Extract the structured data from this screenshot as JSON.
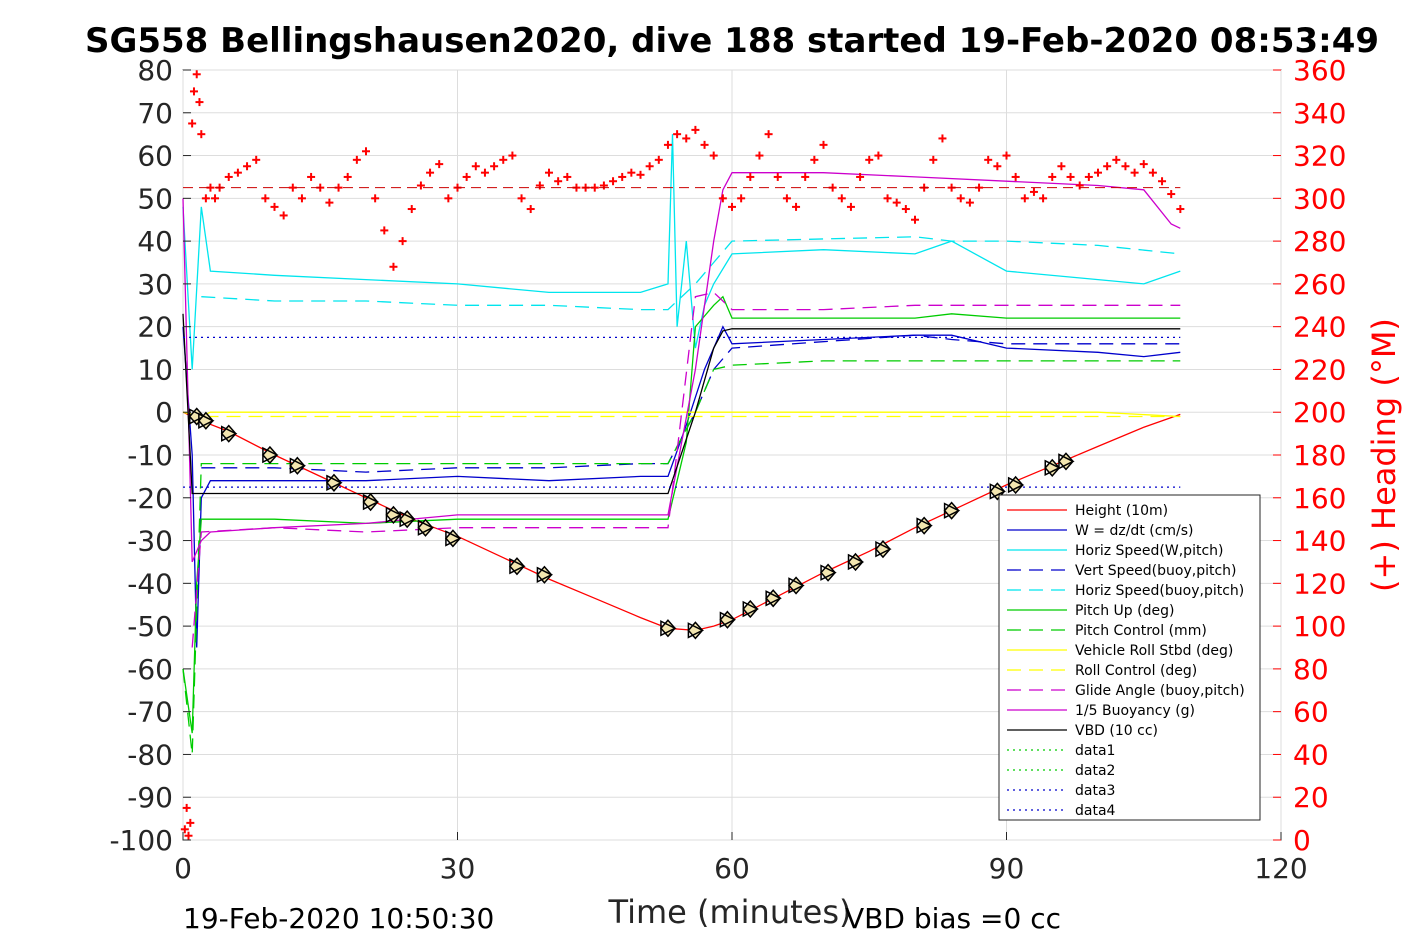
{
  "chart_data": {
    "type": "line",
    "title": "SG558 Bellingshausen2020, dive 188 started 19-Feb-2020 08:53:49",
    "xlabel": "Time (minutes)",
    "ylabel": "",
    "y2label": "(+) Heading (°M)",
    "xlim": [
      0,
      120
    ],
    "ylim": [
      -100,
      80
    ],
    "y2lim": [
      0,
      360
    ],
    "xticks": [
      0,
      30,
      60,
      90,
      120
    ],
    "yticks": [
      80,
      70,
      60,
      50,
      40,
      30,
      20,
      10,
      0,
      -10,
      -20,
      -30,
      -40,
      -50,
      -60,
      -70,
      -80,
      -90,
      -100
    ],
    "y2ticks": [
      360,
      340,
      320,
      300,
      280,
      260,
      240,
      220,
      200,
      180,
      160,
      140,
      120,
      100,
      80,
      60,
      40,
      20,
      0
    ],
    "grid": true,
    "legend_position": "bottom-right",
    "footer_left": "19-Feb-2020 10:50:30",
    "footer_right": "VBD bias =0 cc",
    "series": [
      {
        "name": "Height (10m)",
        "color": "#ff0000",
        "style": "solid",
        "x": [
          0,
          2,
          5,
          10,
          15,
          20,
          25,
          30,
          35,
          40,
          45,
          50,
          53,
          56,
          58,
          60,
          65,
          70,
          75,
          80,
          85,
          90,
          95,
          100,
          105,
          109
        ],
        "y": [
          0,
          -2,
          -4.5,
          -10,
          -15,
          -20,
          -25,
          -29,
          -34,
          -39,
          -43.5,
          -48,
          -50.5,
          -51,
          -50,
          -48.5,
          -43,
          -37.5,
          -32.5,
          -27,
          -22,
          -17,
          -12.5,
          -8,
          -3.5,
          -0.5
        ]
      },
      {
        "name": "W = dz/dt (cm/s)",
        "color": "#0000cc",
        "style": "solid",
        "x": [
          0,
          1,
          1.5,
          2,
          3,
          10,
          20,
          30,
          40,
          50,
          53,
          55,
          57,
          58,
          59,
          60,
          70,
          80,
          84,
          90,
          100,
          105,
          109
        ],
        "y": [
          20,
          -10,
          -55,
          -20,
          -16,
          -16,
          -16,
          -15,
          -16,
          -15,
          -15,
          -3,
          10,
          15,
          20,
          16,
          17,
          18,
          18,
          15,
          14,
          13,
          14
        ]
      },
      {
        "name": "Horiz Speed(W,pitch)",
        "color": "#00e5ee",
        "style": "solid",
        "x": [
          0,
          1,
          2,
          3,
          10,
          20,
          30,
          40,
          50,
          53,
          53.5,
          54,
          55,
          56,
          57,
          58,
          60,
          70,
          80,
          84,
          90,
          100,
          105,
          109
        ],
        "y": [
          48,
          10,
          48,
          33,
          32,
          31,
          30,
          28,
          28,
          30,
          65,
          20,
          40,
          15,
          25,
          30,
          37,
          38,
          37,
          40,
          33,
          31,
          30,
          33
        ]
      },
      {
        "name": "Vert Speed(buoy,pitch)",
        "color": "#0000cc",
        "style": "dash",
        "x": [
          2,
          10,
          20,
          30,
          40,
          50,
          53,
          56,
          58,
          60,
          80,
          84,
          90,
          100,
          109
        ],
        "y": [
          -13,
          -13,
          -14,
          -13,
          -13,
          -12,
          -12,
          0,
          10,
          15,
          18,
          17,
          16,
          16,
          16
        ]
      },
      {
        "name": "Horiz Speed(buoy,pitch)",
        "color": "#00e5ee",
        "style": "dash",
        "x": [
          2,
          10,
          20,
          30,
          40,
          50,
          53,
          56,
          58,
          60,
          80,
          84,
          90,
          100,
          109
        ],
        "y": [
          27,
          26,
          26,
          25,
          25,
          24,
          24,
          30,
          35,
          40,
          41,
          40,
          40,
          39,
          37
        ]
      },
      {
        "name": "Pitch Up (deg)",
        "color": "#00cc00",
        "style": "solid",
        "x": [
          0,
          1,
          1.5,
          2,
          3,
          10,
          20,
          30,
          40,
          50,
          53,
          55,
          56,
          58,
          59,
          60,
          70,
          80,
          84,
          90,
          100,
          109
        ],
        "y": [
          -60,
          -75,
          -40,
          -25,
          -25,
          -25,
          -26,
          -25,
          -25,
          -25,
          -25,
          -7,
          20,
          25,
          27,
          22,
          22,
          22,
          23,
          22,
          22,
          22
        ]
      },
      {
        "name": "Pitch Control (mm)",
        "color": "#00cc00",
        "style": "dash",
        "x": [
          0,
          1,
          2,
          10,
          20,
          30,
          40,
          50,
          53,
          56,
          58,
          60,
          70,
          80,
          84,
          90,
          100,
          109
        ],
        "y": [
          -60,
          -80,
          -12,
          -12,
          -12,
          -12,
          -12,
          -12,
          -12,
          0,
          10,
          11,
          12,
          12,
          12,
          12,
          12,
          12
        ]
      },
      {
        "name": "Vehicle Roll Stbd (deg)",
        "color": "#ffff00",
        "style": "solid",
        "x": [
          0,
          2,
          3,
          10,
          20,
          30,
          40,
          50,
          53,
          56,
          58,
          60,
          70,
          80,
          90,
          100,
          109
        ],
        "y": [
          0,
          -1,
          0,
          0,
          0,
          0,
          0,
          0,
          0,
          0,
          0,
          0,
          0,
          0,
          0,
          0,
          -1
        ]
      },
      {
        "name": "Roll Control (deg)",
        "color": "#ffff00",
        "style": "dash",
        "x": [
          0,
          2,
          10,
          20,
          30,
          40,
          50,
          53,
          56,
          58,
          60,
          70,
          80,
          90,
          100,
          109
        ],
        "y": [
          0,
          -1,
          -1,
          -1,
          -1,
          -1,
          -1,
          -1,
          -1,
          -1,
          -1,
          -1,
          -1,
          -1,
          -1,
          -1
        ]
      },
      {
        "name": "Glide Angle (buoy,pitch)",
        "color": "#cc00cc",
        "style": "dash",
        "x": [
          1,
          2,
          10,
          20,
          30,
          40,
          50,
          53,
          56,
          58,
          60,
          70,
          80,
          84,
          90,
          100,
          109
        ],
        "y": [
          -55,
          -28,
          -27,
          -28,
          -27,
          -27,
          -27,
          -27,
          27,
          28,
          24,
          24,
          25,
          25,
          25,
          25,
          25
        ]
      },
      {
        "name": "1/5 Buoyancy (g)",
        "color": "#cc00cc",
        "style": "solid",
        "x": [
          0,
          1,
          2,
          3,
          10,
          20,
          30,
          40,
          50,
          53,
          56,
          58,
          59,
          60,
          70,
          80,
          90,
          100,
          105,
          108,
          109
        ],
        "y": [
          50,
          -35,
          -30,
          -28,
          -27,
          -26,
          -24,
          -24,
          -24,
          -24,
          10,
          40,
          52,
          56,
          56,
          55,
          54,
          53,
          52,
          44,
          43
        ]
      },
      {
        "name": "VBD (10 cc)",
        "color": "#000000",
        "style": "solid",
        "x": [
          0,
          1,
          2,
          10,
          20,
          30,
          40,
          50,
          53,
          56,
          58,
          59,
          60,
          70,
          80,
          90,
          100,
          109
        ],
        "y": [
          23,
          -19,
          -19,
          -19,
          -19,
          -19,
          -19,
          -19,
          -19,
          0,
          15,
          19,
          19.5,
          19.5,
          19.5,
          19.5,
          19.5,
          19.5
        ]
      },
      {
        "name": "data1",
        "color": "#00cc00",
        "style": "dot",
        "x": [],
        "y": []
      },
      {
        "name": "data2",
        "color": "#00cc00",
        "style": "dot",
        "x": [],
        "y": []
      },
      {
        "name": "data3",
        "color": "#0000cc",
        "style": "dot",
        "x": [
          0,
          109
        ],
        "y": [
          17.5,
          17.5
        ]
      },
      {
        "name": "data4",
        "color": "#0000cc",
        "style": "dot",
        "x": [
          0,
          109
        ],
        "y": [
          -17.5,
          -17.5
        ]
      }
    ],
    "heading": {
      "axis": "right",
      "marker": "+",
      "color": "#ff0000",
      "x": [
        0.2,
        0.4,
        0.6,
        0.8,
        1.0,
        1.2,
        1.5,
        1.8,
        2.0,
        2.5,
        3,
        3.5,
        4,
        5,
        6,
        7,
        8,
        9,
        10,
        11,
        12,
        13,
        14,
        15,
        16,
        17,
        18,
        19,
        20,
        21,
        22,
        23,
        24,
        25,
        26,
        27,
        28,
        29,
        30,
        31,
        32,
        33,
        34,
        35,
        36,
        37,
        38,
        39,
        40,
        41,
        42,
        43,
        44,
        45,
        46,
        47,
        48,
        49,
        50,
        51,
        52,
        53,
        54,
        55,
        56,
        57,
        58,
        59,
        60,
        61,
        62,
        63,
        64,
        65,
        66,
        67,
        68,
        69,
        70,
        71,
        72,
        73,
        74,
        75,
        76,
        77,
        78,
        79,
        80,
        81,
        82,
        83,
        84,
        85,
        86,
        87,
        88,
        89,
        90,
        91,
        92,
        93,
        94,
        95,
        96,
        97,
        98,
        99,
        100,
        101,
        102,
        103,
        104,
        105,
        106,
        107,
        108,
        109
      ],
      "y": [
        5,
        15,
        2,
        8,
        335,
        350,
        358,
        345,
        330,
        300,
        305,
        300,
        305,
        310,
        312,
        315,
        318,
        300,
        296,
        292,
        305,
        300,
        310,
        305,
        298,
        305,
        310,
        318,
        322,
        300,
        285,
        268,
        280,
        295,
        306,
        312,
        316,
        300,
        305,
        310,
        315,
        312,
        315,
        318,
        320,
        300,
        295,
        306,
        312,
        308,
        310,
        305,
        305,
        305,
        306,
        308,
        310,
        312,
        311,
        315,
        318,
        325,
        330,
        328,
        332,
        325,
        320,
        300,
        296,
        300,
        310,
        320,
        330,
        310,
        300,
        296,
        310,
        318,
        325,
        305,
        300,
        296,
        310,
        318,
        320,
        300,
        298,
        295,
        290,
        305,
        318,
        328,
        305,
        300,
        298,
        305,
        318,
        315,
        320,
        310,
        300,
        303,
        300,
        310,
        315,
        310,
        306,
        310,
        312,
        315,
        318,
        315,
        312,
        316,
        312,
        308,
        302,
        295
      ]
    },
    "markers": {
      "style": "diamond-triangle",
      "color": "#000000",
      "x": [
        1.5,
        2.5,
        5,
        9.5,
        12.5,
        16.5,
        20.5,
        23,
        24.5,
        26.5,
        29.5,
        36.5,
        39.5,
        53,
        56,
        59.5,
        62,
        64.5,
        67,
        70.5,
        73.5,
        76.5,
        81,
        84,
        89,
        91,
        95,
        96.5
      ],
      "y": [
        -1,
        -2,
        -5,
        -10,
        -12.5,
        -16.5,
        -21,
        -24,
        -25,
        -27,
        -29.5,
        -36,
        -38,
        -50.5,
        -51,
        -48.5,
        -46,
        -43.5,
        -40.5,
        -37.5,
        -35,
        -32,
        -26.5,
        -23,
        -18.5,
        -17,
        -13,
        -11.5
      ]
    }
  }
}
